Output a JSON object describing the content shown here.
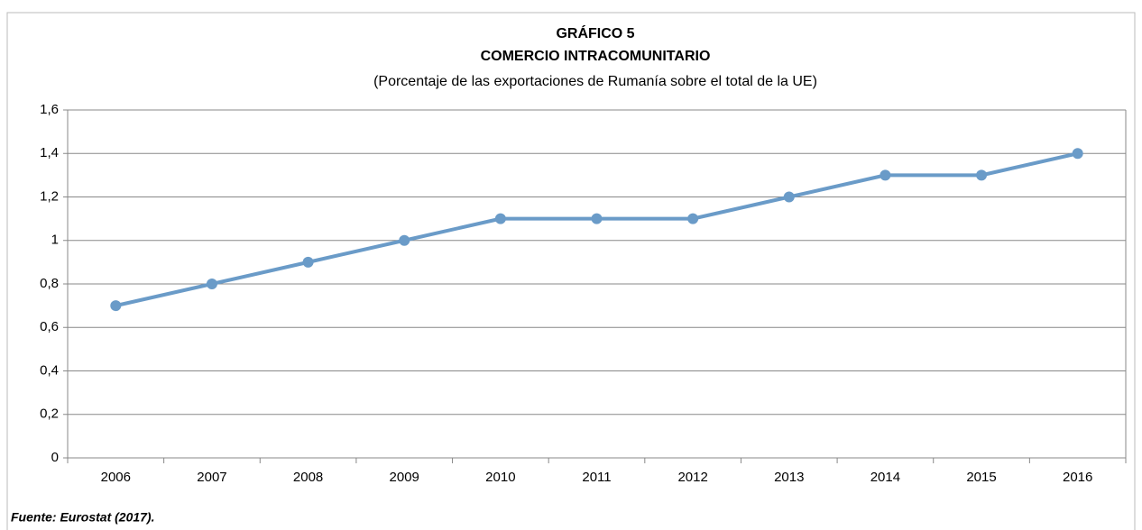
{
  "chart_data": {
    "type": "line",
    "title": "GRÁFICO 5",
    "subtitle": "COMERCIO INTRACOMUNITARIO",
    "note": "(Porcentaje de las exportaciones de Rumanía sobre el total de la UE)",
    "source": "Fuente: Eurostat (2017).",
    "categories": [
      "2006",
      "2007",
      "2008",
      "2009",
      "2010",
      "2011",
      "2012",
      "2013",
      "2014",
      "2015",
      "2016"
    ],
    "values": [
      0.7,
      0.8,
      0.9,
      1.0,
      1.1,
      1.1,
      1.1,
      1.2,
      1.3,
      1.3,
      1.4
    ],
    "color": "#6a9bc8",
    "ylim": [
      0,
      1.6
    ],
    "yticks": [
      0,
      {
        "value": 0.2,
        "label": "0,2"
      },
      {
        "value": 0.4,
        "label": "0,4"
      },
      {
        "value": 0.6,
        "label": "0,6"
      },
      {
        "value": 0.8,
        "label": "0,8"
      },
      1,
      {
        "value": 1.2,
        "label": "1,2"
      },
      {
        "value": 1.4,
        "label": "1,4"
      },
      {
        "value": 1.6,
        "label": "1,6"
      }
    ],
    "grid": true
  }
}
